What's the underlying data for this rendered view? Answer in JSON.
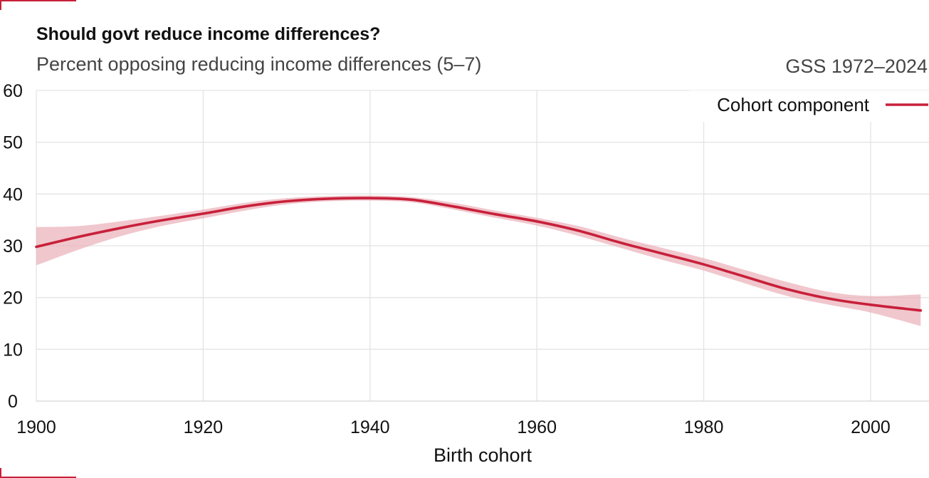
{
  "title": "Should govt reduce income differences?",
  "subtitle": "Percent opposing reducing income differences (5–7)",
  "source": "GSS 1972–2024",
  "colors": {
    "line": "#c8203a",
    "band": "#e8a9b2",
    "accent": "#c8203a"
  },
  "chart_data": {
    "type": "line",
    "xlabel": "Birth cohort",
    "ylabel": "",
    "xlim": [
      1900,
      2007
    ],
    "ylim": [
      0,
      60
    ],
    "x_ticks": [
      1900,
      1920,
      1940,
      1960,
      1980,
      2000
    ],
    "y_ticks": [
      0,
      10,
      20,
      30,
      40,
      50,
      60
    ],
    "grid": true,
    "legend_position": "top-right",
    "series": [
      {
        "name": "Cohort component",
        "x": [
          1900,
          1905,
          1910,
          1915,
          1920,
          1925,
          1930,
          1935,
          1940,
          1945,
          1950,
          1955,
          1960,
          1965,
          1970,
          1975,
          1980,
          1985,
          1990,
          1995,
          2000,
          2006
        ],
        "values": [
          29.8,
          31.7,
          33.4,
          34.9,
          36.2,
          37.6,
          38.6,
          39.1,
          39.2,
          38.9,
          37.6,
          36.1,
          34.7,
          32.9,
          30.6,
          28.5,
          26.4,
          24.0,
          21.6,
          19.8,
          18.6,
          17.5
        ],
        "lower": [
          26.2,
          29.2,
          31.8,
          33.8,
          35.3,
          36.8,
          38.0,
          38.6,
          38.7,
          38.4,
          37.0,
          35.4,
          33.9,
          31.9,
          29.6,
          27.3,
          25.2,
          22.7,
          20.3,
          18.6,
          17.1,
          14.5
        ],
        "upper": [
          33.6,
          33.8,
          34.7,
          35.8,
          37.0,
          38.3,
          39.2,
          39.6,
          39.7,
          39.4,
          38.3,
          36.8,
          35.4,
          33.8,
          31.6,
          29.6,
          27.6,
          25.3,
          23.0,
          21.1,
          20.3,
          20.6
        ]
      }
    ]
  }
}
